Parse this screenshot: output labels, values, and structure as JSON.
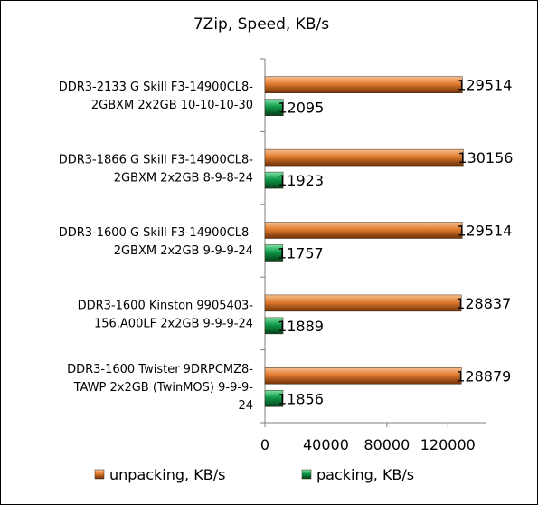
{
  "chart_data": {
    "type": "bar",
    "orientation": "horizontal",
    "title": "7Zip, Speed, KB/s",
    "xlabel": "",
    "ylabel": "",
    "xlim": [
      0,
      140000
    ],
    "ticks": [
      "0",
      "40000",
      "80000",
      "120000"
    ],
    "tick_values": [
      0,
      40000,
      80000,
      120000
    ],
    "grid": false,
    "legend_position": "bottom",
    "categories": [
      [
        "DDR3-2133 G Skill F3-14900CL8-",
        "2GBXM 2x2GB 10-10-10-30"
      ],
      [
        "DDR3-1866 G Skill F3-14900CL8-",
        "2GBXM 2x2GB 8-9-8-24"
      ],
      [
        "DDR3-1600 G Skill F3-14900CL8-",
        "2GBXM 2x2GB 9-9-9-24"
      ],
      [
        "DDR3-1600 Kinston 9905403-",
        "156.A00LF 2x2GB 9-9-9-24"
      ],
      [
        "DDR3-1600 Twister 9DRPCMZ8-",
        "TAWP 2x2GB (TwinMOS) 9-9-9-",
        "24"
      ]
    ],
    "series": [
      {
        "name": "unpacking, KB/s",
        "color": "#E07A2E",
        "values": [
          129514,
          130156,
          129514,
          128837,
          128879
        ]
      },
      {
        "name": "packing, KB/s",
        "color": "#0E9A4A",
        "values": [
          12095,
          11923,
          11757,
          11889,
          11856
        ]
      }
    ]
  }
}
